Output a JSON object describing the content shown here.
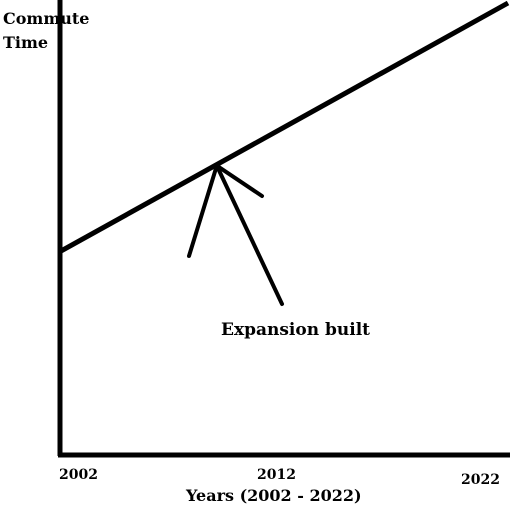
{
  "chart_data": {
    "type": "line",
    "title": "",
    "ylabel_lines": [
      "Commute",
      "Time"
    ],
    "xlabel": "Years (2002 - 2022)",
    "x_ticks": [
      2002,
      2012,
      2022
    ],
    "xlim": [
      2002,
      2022
    ],
    "series": [
      {
        "x": [
          2002,
          2022
        ],
        "y": [
          0.45,
          1.0
        ]
      }
    ],
    "annotations": [
      {
        "text": "Expansion built",
        "x": 2009,
        "y": 0.64,
        "arrow": true
      }
    ],
    "grid": false,
    "legend": "none",
    "colors": {
      "line": "#000000",
      "axes": "#000000",
      "background": "#ffffff"
    }
  }
}
